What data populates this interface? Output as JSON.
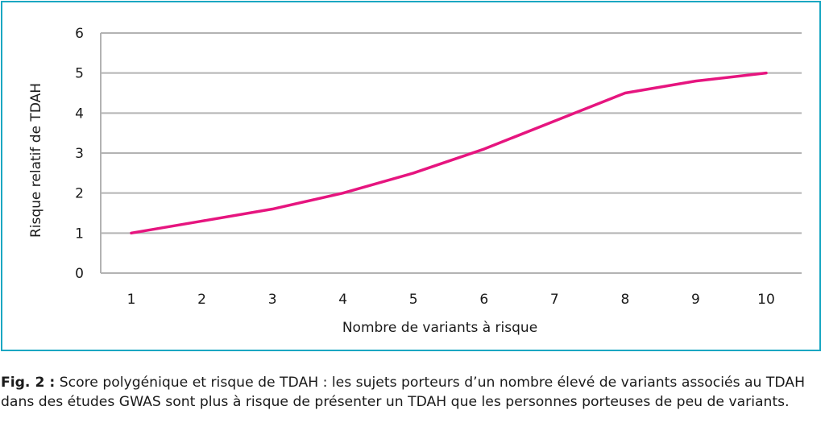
{
  "chart_data": {
    "type": "line",
    "x": [
      1,
      2,
      3,
      4,
      5,
      6,
      7,
      8,
      9,
      10
    ],
    "series": [
      {
        "values": [
          1.0,
          1.3,
          1.6,
          2.0,
          2.5,
          3.1,
          3.8,
          4.5,
          4.8,
          5.0
        ],
        "color": "#e6157f"
      }
    ],
    "xlabel": "Nombre de variants à risque",
    "ylabel": "Risque relatif de TDAH",
    "ylim": [
      0,
      6
    ],
    "xlim": [
      1,
      10
    ],
    "y_ticks": [
      "0",
      "1",
      "2",
      "3",
      "4",
      "5",
      "6"
    ],
    "x_ticks": [
      "1",
      "2",
      "3",
      "4",
      "5",
      "6",
      "7",
      "8",
      "9",
      "10"
    ],
    "grid": "horizontal",
    "grid_color": "#b3b3b3",
    "frame_color": "#1aa7c2"
  },
  "caption": {
    "label": "Fig. 2 :",
    "text": " Score polygénique et risque de TDAH : les sujets porteurs d’un nombre élevé de variants associés au TDAH dans des études GWAS sont plus à risque de présenter un TDAH que les personnes porteuses de peu de variants."
  }
}
